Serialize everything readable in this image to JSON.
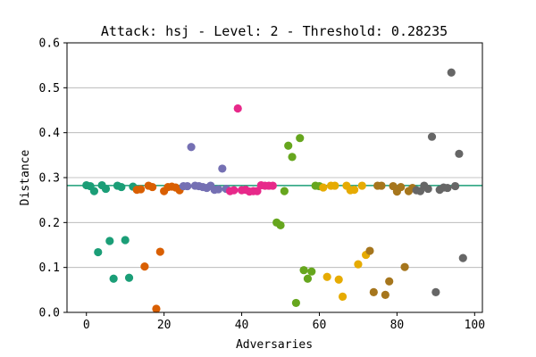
{
  "chart_data": {
    "type": "scatter",
    "title": "Attack: hsj - Level: 2 - Threshold: 0.28235",
    "xlabel": "Adversaries",
    "ylabel": "Distance",
    "xlim": [
      -5,
      102
    ],
    "ylim": [
      0,
      0.6
    ],
    "xticks": [
      0,
      20,
      40,
      60,
      80,
      100
    ],
    "xtick_labels": [
      "0",
      "20",
      "40",
      "60",
      "80",
      "100"
    ],
    "yticks": [
      0.0,
      0.1,
      0.2,
      0.3,
      0.4,
      0.5,
      0.6
    ],
    "ytick_labels": [
      "0.0",
      "0.1",
      "0.2",
      "0.3",
      "0.4",
      "0.5",
      "0.6"
    ],
    "grid": "horizontal",
    "threshold": {
      "value": 0.28235,
      "color": "#1b9e77"
    },
    "colors": [
      "#1b9e77",
      "#d95f02",
      "#7570b3",
      "#e7298a",
      "#66a61e",
      "#e6ab02",
      "#a6761d",
      "#666666"
    ],
    "points": [
      {
        "x": 0,
        "y": 0.283,
        "c": 0
      },
      {
        "x": 1,
        "y": 0.281,
        "c": 0
      },
      {
        "x": 2,
        "y": 0.27,
        "c": 0
      },
      {
        "x": 3,
        "y": 0.134,
        "c": 0
      },
      {
        "x": 4,
        "y": 0.283,
        "c": 0
      },
      {
        "x": 5,
        "y": 0.275,
        "c": 0
      },
      {
        "x": 6,
        "y": 0.159,
        "c": 0
      },
      {
        "x": 7,
        "y": 0.075,
        "c": 0
      },
      {
        "x": 8,
        "y": 0.282,
        "c": 0
      },
      {
        "x": 9,
        "y": 0.279,
        "c": 0
      },
      {
        "x": 10,
        "y": 0.161,
        "c": 0
      },
      {
        "x": 11,
        "y": 0.077,
        "c": 0
      },
      {
        "x": 12,
        "y": 0.28,
        "c": 0
      },
      {
        "x": 13,
        "y": 0.273,
        "c": 1
      },
      {
        "x": 14,
        "y": 0.274,
        "c": 1
      },
      {
        "x": 15,
        "y": 0.102,
        "c": 1
      },
      {
        "x": 16,
        "y": 0.282,
        "c": 1
      },
      {
        "x": 17,
        "y": 0.279,
        "c": 1
      },
      {
        "x": 18,
        "y": 0.008,
        "c": 1
      },
      {
        "x": 19,
        "y": 0.135,
        "c": 1
      },
      {
        "x": 20,
        "y": 0.27,
        "c": 1
      },
      {
        "x": 21,
        "y": 0.279,
        "c": 1
      },
      {
        "x": 22,
        "y": 0.28,
        "c": 1
      },
      {
        "x": 23,
        "y": 0.278,
        "c": 1
      },
      {
        "x": 24,
        "y": 0.272,
        "c": 1
      },
      {
        "x": 25,
        "y": 0.281,
        "c": 2
      },
      {
        "x": 26,
        "y": 0.281,
        "c": 2
      },
      {
        "x": 27,
        "y": 0.368,
        "c": 2
      },
      {
        "x": 28,
        "y": 0.282,
        "c": 2
      },
      {
        "x": 29,
        "y": 0.281,
        "c": 2
      },
      {
        "x": 30,
        "y": 0.279,
        "c": 2
      },
      {
        "x": 31,
        "y": 0.277,
        "c": 2
      },
      {
        "x": 32,
        "y": 0.282,
        "c": 2
      },
      {
        "x": 33,
        "y": 0.273,
        "c": 2
      },
      {
        "x": 34,
        "y": 0.274,
        "c": 2
      },
      {
        "x": 35,
        "y": 0.32,
        "c": 2
      },
      {
        "x": 36,
        "y": 0.275,
        "c": 2
      },
      {
        "x": 37,
        "y": 0.27,
        "c": 3
      },
      {
        "x": 38,
        "y": 0.272,
        "c": 3
      },
      {
        "x": 39,
        "y": 0.454,
        "c": 3
      },
      {
        "x": 40,
        "y": 0.272,
        "c": 3
      },
      {
        "x": 41,
        "y": 0.273,
        "c": 3
      },
      {
        "x": 42,
        "y": 0.269,
        "c": 3
      },
      {
        "x": 43,
        "y": 0.27,
        "c": 3
      },
      {
        "x": 44,
        "y": 0.27,
        "c": 3
      },
      {
        "x": 45,
        "y": 0.283,
        "c": 3
      },
      {
        "x": 46,
        "y": 0.282,
        "c": 3
      },
      {
        "x": 47,
        "y": 0.282,
        "c": 3
      },
      {
        "x": 48,
        "y": 0.282,
        "c": 3
      },
      {
        "x": 49,
        "y": 0.2,
        "c": 4
      },
      {
        "x": 50,
        "y": 0.194,
        "c": 4
      },
      {
        "x": 51,
        "y": 0.27,
        "c": 4
      },
      {
        "x": 52,
        "y": 0.371,
        "c": 4
      },
      {
        "x": 53,
        "y": 0.346,
        "c": 4
      },
      {
        "x": 54,
        "y": 0.021,
        "c": 4
      },
      {
        "x": 55,
        "y": 0.388,
        "c": 4
      },
      {
        "x": 56,
        "y": 0.094,
        "c": 4
      },
      {
        "x": 57,
        "y": 0.075,
        "c": 4
      },
      {
        "x": 58,
        "y": 0.091,
        "c": 4
      },
      {
        "x": 59,
        "y": 0.282,
        "c": 4
      },
      {
        "x": 60,
        "y": 0.281,
        "c": 4
      },
      {
        "x": 61,
        "y": 0.278,
        "c": 5
      },
      {
        "x": 62,
        "y": 0.079,
        "c": 5
      },
      {
        "x": 63,
        "y": 0.282,
        "c": 5
      },
      {
        "x": 64,
        "y": 0.282,
        "c": 5
      },
      {
        "x": 65,
        "y": 0.073,
        "c": 5
      },
      {
        "x": 66,
        "y": 0.035,
        "c": 5
      },
      {
        "x": 67,
        "y": 0.282,
        "c": 5
      },
      {
        "x": 68,
        "y": 0.272,
        "c": 5
      },
      {
        "x": 69,
        "y": 0.273,
        "c": 5
      },
      {
        "x": 70,
        "y": 0.107,
        "c": 5
      },
      {
        "x": 71,
        "y": 0.282,
        "c": 5
      },
      {
        "x": 72,
        "y": 0.128,
        "c": 5
      },
      {
        "x": 73,
        "y": 0.137,
        "c": 6
      },
      {
        "x": 74,
        "y": 0.045,
        "c": 6
      },
      {
        "x": 75,
        "y": 0.282,
        "c": 6
      },
      {
        "x": 76,
        "y": 0.282,
        "c": 6
      },
      {
        "x": 77,
        "y": 0.039,
        "c": 6
      },
      {
        "x": 78,
        "y": 0.069,
        "c": 6
      },
      {
        "x": 79,
        "y": 0.281,
        "c": 6
      },
      {
        "x": 80,
        "y": 0.269,
        "c": 6
      },
      {
        "x": 81,
        "y": 0.279,
        "c": 6
      },
      {
        "x": 82,
        "y": 0.101,
        "c": 6
      },
      {
        "x": 83,
        "y": 0.27,
        "c": 6
      },
      {
        "x": 84,
        "y": 0.277,
        "c": 6
      },
      {
        "x": 85,
        "y": 0.272,
        "c": 7
      },
      {
        "x": 86,
        "y": 0.27,
        "c": 7
      },
      {
        "x": 87,
        "y": 0.282,
        "c": 7
      },
      {
        "x": 88,
        "y": 0.275,
        "c": 7
      },
      {
        "x": 89,
        "y": 0.391,
        "c": 7
      },
      {
        "x": 90,
        "y": 0.045,
        "c": 7
      },
      {
        "x": 91,
        "y": 0.273,
        "c": 7
      },
      {
        "x": 92,
        "y": 0.278,
        "c": 7
      },
      {
        "x": 93,
        "y": 0.277,
        "c": 7
      },
      {
        "x": 94,
        "y": 0.534,
        "c": 7
      },
      {
        "x": 95,
        "y": 0.281,
        "c": 7
      },
      {
        "x": 96,
        "y": 0.353,
        "c": 7
      },
      {
        "x": 97,
        "y": 0.121,
        "c": 7
      }
    ]
  }
}
